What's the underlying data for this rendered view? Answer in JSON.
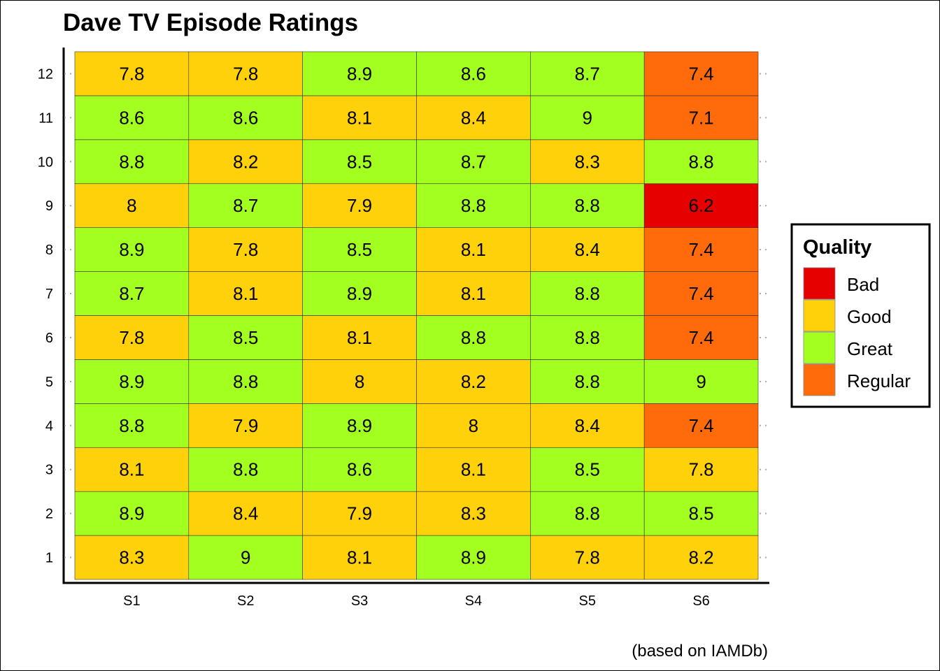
{
  "chart_data": {
    "type": "heatmap",
    "title": "Dave TV Episode Ratings",
    "caption": "(based on IAMDb)",
    "xlabel": "",
    "ylabel": "",
    "x_categories": [
      "S1",
      "S2",
      "S3",
      "S4",
      "S5",
      "S6"
    ],
    "y_categories": [
      "1",
      "2",
      "3",
      "4",
      "5",
      "6",
      "7",
      "8",
      "9",
      "10",
      "11",
      "12"
    ],
    "values": [
      [
        8.3,
        9,
        8.1,
        8.9,
        7.8,
        8.2
      ],
      [
        8.9,
        8.4,
        7.9,
        8.3,
        8.8,
        8.5
      ],
      [
        8.1,
        8.8,
        8.6,
        8.1,
        8.5,
        7.8
      ],
      [
        8.8,
        7.9,
        8.9,
        8,
        8.4,
        7.4
      ],
      [
        8.9,
        8.8,
        8,
        8.2,
        8.8,
        9
      ],
      [
        7.8,
        8.5,
        8.1,
        8.8,
        8.8,
        7.4
      ],
      [
        8.7,
        8.1,
        8.9,
        8.1,
        8.8,
        7.4
      ],
      [
        8.9,
        7.8,
        8.5,
        8.1,
        8.4,
        7.4
      ],
      [
        8,
        8.7,
        7.9,
        8.8,
        8.8,
        6.2
      ],
      [
        8.8,
        8.2,
        8.5,
        8.7,
        8.3,
        8.8
      ],
      [
        8.6,
        8.6,
        8.1,
        8.4,
        9,
        7.1
      ],
      [
        7.8,
        7.8,
        8.9,
        8.6,
        8.7,
        7.4
      ]
    ],
    "legend": {
      "title": "Quality",
      "position": "right",
      "entries": [
        {
          "label": "Bad",
          "color": "#E60000"
        },
        {
          "label": "Good",
          "color": "#FFD10A"
        },
        {
          "label": "Great",
          "color": "#A3FF20"
        },
        {
          "label": "Regular",
          "color": "#FF6A0A"
        }
      ]
    },
    "grid": false
  }
}
